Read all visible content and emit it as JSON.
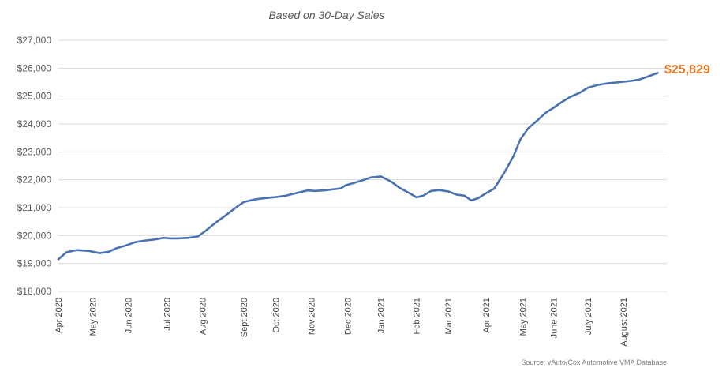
{
  "chart_data": {
    "type": "line",
    "title": "",
    "subtitle": "Based on 30-Day Sales",
    "xlabel": "",
    "ylabel": "",
    "source": "Source: vAuto/Cox Automotive VMA Database",
    "ylim": [
      18000,
      27000
    ],
    "yticks": [
      18000,
      19000,
      20000,
      21000,
      22000,
      23000,
      24000,
      25000,
      26000,
      27000
    ],
    "ytick_labels": [
      "$18,000",
      "$19,000",
      "$20,000",
      "$21,000",
      "$22,000",
      "$23,000",
      "$24,000",
      "$25,000",
      "$26,000",
      "$27,000"
    ],
    "xlim": [
      "2020-04-01",
      "2021-09-15"
    ],
    "xticks": [
      {
        "label": "Apr 2020",
        "date": "2020-04-01"
      },
      {
        "label": "May 2020",
        "date": "2020-05-01"
      },
      {
        "label": "Jun 2020",
        "date": "2020-06-01"
      },
      {
        "label": "Jul 2020",
        "date": "2020-07-05"
      },
      {
        "label": "Aug 2020",
        "date": "2020-08-05"
      },
      {
        "label": "Sept 2020",
        "date": "2020-09-10"
      },
      {
        "label": "Oct 2020",
        "date": "2020-10-08"
      },
      {
        "label": "Nov 2020",
        "date": "2020-11-08"
      },
      {
        "label": "Dec 2020",
        "date": "2020-12-10"
      },
      {
        "label": "Jan 2021",
        "date": "2021-01-08"
      },
      {
        "label": "Feb 2021",
        "date": "2021-02-08"
      },
      {
        "label": "Mar 2021",
        "date": "2021-03-08"
      },
      {
        "label": "Apr 2021",
        "date": "2021-04-10"
      },
      {
        "label": "May 2021",
        "date": "2021-05-12"
      },
      {
        "label": "June 2021",
        "date": "2021-06-08"
      },
      {
        "label": "July 2021",
        "date": "2021-07-08"
      },
      {
        "label": "August 2021",
        "date": "2021-08-08"
      }
    ],
    "grid": true,
    "line_color": "#4a72b2",
    "end_label": "$25,829",
    "end_label_color": "#e07b2a",
    "series": [
      {
        "name": "",
        "x": [
          "2020-04-01",
          "2020-04-08",
          "2020-04-17",
          "2020-04-28",
          "2020-05-07",
          "2020-05-15",
          "2020-05-22",
          "2020-05-28",
          "2020-06-07",
          "2020-06-14",
          "2020-06-24",
          "2020-07-02",
          "2020-07-08",
          "2020-07-14",
          "2020-07-24",
          "2020-08-01",
          "2020-08-08",
          "2020-08-17",
          "2020-08-27",
          "2020-09-05",
          "2020-09-10",
          "2020-09-19",
          "2020-09-26",
          "2020-10-08",
          "2020-10-17",
          "2020-10-24",
          "2020-11-05",
          "2020-11-11",
          "2020-11-20",
          "2020-11-26",
          "2020-12-04",
          "2020-12-08",
          "2020-12-15",
          "2020-12-23",
          "2020-12-30",
          "2021-01-08",
          "2021-01-17",
          "2021-01-24",
          "2021-02-02",
          "2021-02-08",
          "2021-02-14",
          "2021-02-21",
          "2021-02-28",
          "2021-03-08",
          "2021-03-15",
          "2021-03-22",
          "2021-03-28",
          "2021-04-03",
          "2021-04-10",
          "2021-04-17",
          "2021-04-26",
          "2021-05-04",
          "2021-05-10",
          "2021-05-17",
          "2021-05-24",
          "2021-06-01",
          "2021-06-08",
          "2021-06-15",
          "2021-06-23",
          "2021-07-01",
          "2021-07-08",
          "2021-07-17",
          "2021-07-26",
          "2021-08-05",
          "2021-08-14",
          "2021-08-22",
          "2021-09-07"
        ],
        "values": [
          19150,
          19400,
          19480,
          19450,
          19370,
          19420,
          19550,
          19620,
          19760,
          19810,
          19860,
          19920,
          19900,
          19900,
          19920,
          19970,
          20180,
          20480,
          20780,
          21060,
          21200,
          21290,
          21330,
          21380,
          21430,
          21500,
          21620,
          21600,
          21620,
          21650,
          21690,
          21800,
          21880,
          21980,
          22080,
          22120,
          21930,
          21720,
          21520,
          21370,
          21430,
          21600,
          21630,
          21580,
          21470,
          21430,
          21260,
          21340,
          21520,
          21680,
          22260,
          22850,
          23450,
          23850,
          24100,
          24400,
          24580,
          24780,
          24980,
          25120,
          25300,
          25400,
          25460,
          25500,
          25540,
          25590,
          25829
        ]
      }
    ]
  }
}
